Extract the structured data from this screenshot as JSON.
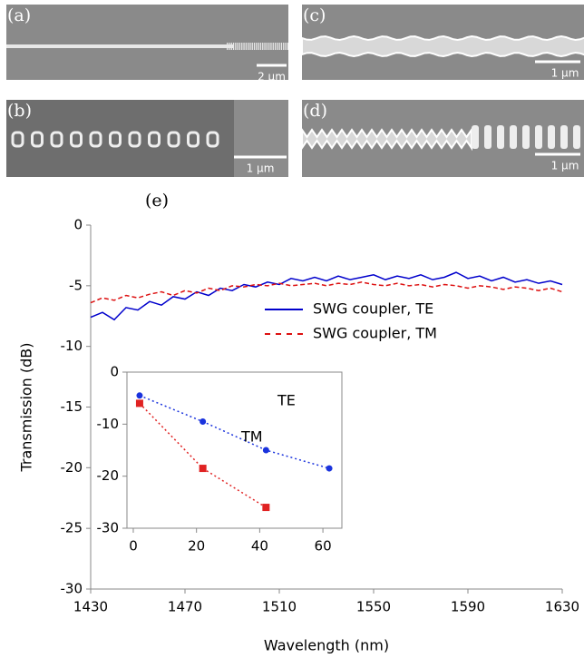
{
  "panels": [
    {
      "label": "(a)",
      "scale": "2 μm"
    },
    {
      "label": "(b)",
      "scale": "1 μm"
    },
    {
      "label": "(c)",
      "scale": "1 μm"
    },
    {
      "label": "(d)",
      "scale": "1 μm"
    }
  ],
  "panel_e_label": "(e)",
  "chart_data": [
    {
      "type": "line",
      "xlabel": "Wavelength (nm)",
      "ylabel": "Transmission (dB)",
      "x": [
        1430,
        1435,
        1440,
        1445,
        1450,
        1455,
        1460,
        1465,
        1470,
        1475,
        1480,
        1485,
        1490,
        1495,
        1500,
        1505,
        1510,
        1515,
        1520,
        1525,
        1530,
        1535,
        1540,
        1545,
        1550,
        1555,
        1560,
        1565,
        1570,
        1575,
        1580,
        1585,
        1590,
        1595,
        1600,
        1605,
        1610,
        1615,
        1620,
        1625,
        1630
      ],
      "series": [
        {
          "name": "SWG coupler, TE",
          "color": "#0000cc",
          "dash": false,
          "values": [
            -7.6,
            -7.2,
            -7.8,
            -6.8,
            -7.0,
            -6.3,
            -6.6,
            -5.9,
            -6.1,
            -5.5,
            -5.8,
            -5.2,
            -5.4,
            -4.9,
            -5.1,
            -4.7,
            -4.9,
            -4.4,
            -4.6,
            -4.3,
            -4.6,
            -4.2,
            -4.5,
            -4.3,
            -4.1,
            -4.5,
            -4.2,
            -4.4,
            -4.1,
            -4.5,
            -4.3,
            -3.9,
            -4.4,
            -4.2,
            -4.6,
            -4.3,
            -4.7,
            -4.5,
            -4.8,
            -4.6,
            -4.9
          ]
        },
        {
          "name": "SWG coupler, TM",
          "color": "#dd1111",
          "dash": true,
          "values": [
            -6.4,
            -6.0,
            -6.2,
            -5.8,
            -6.0,
            -5.7,
            -5.5,
            -5.8,
            -5.4,
            -5.6,
            -5.2,
            -5.4,
            -5.0,
            -5.1,
            -4.9,
            -5.0,
            -4.8,
            -5.0,
            -4.9,
            -4.8,
            -5.0,
            -4.8,
            -4.9,
            -4.7,
            -4.9,
            -5.0,
            -4.8,
            -5.0,
            -4.9,
            -5.1,
            -4.9,
            -5.0,
            -5.2,
            -5.0,
            -5.1,
            -5.3,
            -5.1,
            -5.2,
            -5.4,
            -5.2,
            -5.5
          ]
        }
      ],
      "xlim": [
        1430,
        1630
      ],
      "xticks": [
        1430,
        1470,
        1510,
        1550,
        1590,
        1630
      ],
      "ylim": [
        -30,
        0
      ],
      "yticks": [
        0,
        -5,
        -10,
        -15,
        -20,
        -25,
        -30
      ],
      "legend": "upper right"
    },
    {
      "type": "scatter",
      "annotations": [
        "TE",
        "TM"
      ],
      "series": [
        {
          "color": "#1a33dd",
          "marker": "circle",
          "x": [
            2,
            22,
            42,
            62
          ],
          "values": [
            -4.5,
            -9.5,
            -15,
            -18.5
          ]
        },
        {
          "color": "#e02222",
          "marker": "square",
          "x": [
            2,
            22,
            42
          ],
          "values": [
            -6,
            -18.5,
            -26
          ]
        }
      ],
      "xlim": [
        -2,
        66
      ],
      "xticks": [
        0,
        20,
        40,
        60
      ],
      "ylim": [
        -30,
        0
      ],
      "yticks": [
        0,
        -10,
        -20,
        -30
      ]
    }
  ]
}
